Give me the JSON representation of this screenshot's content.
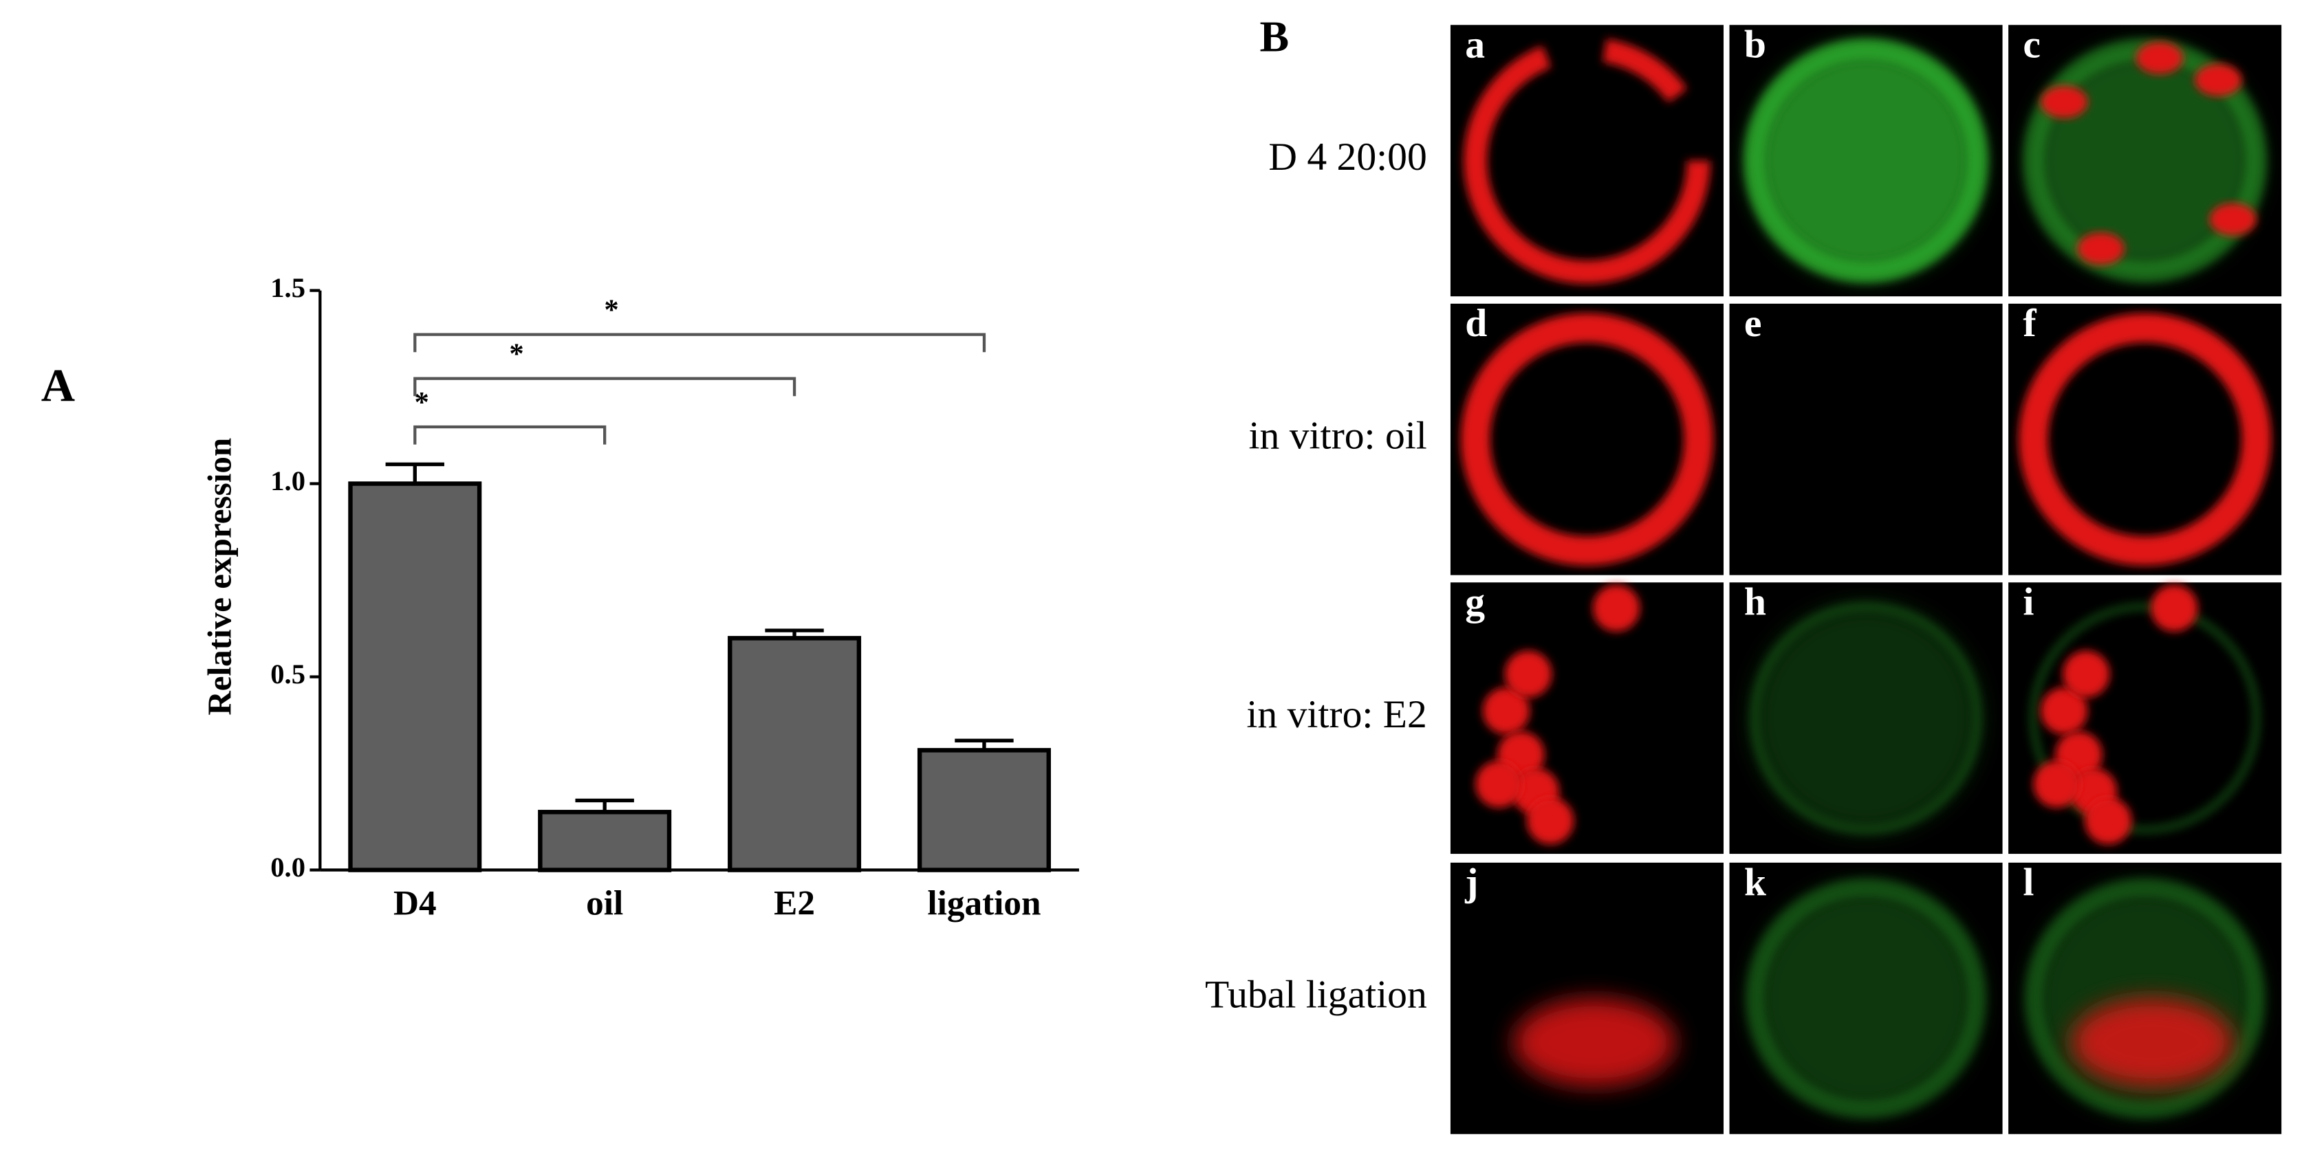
{
  "chart_data": {
    "type": "bar",
    "panel_label": "A",
    "ylabel": "Relative expression",
    "categories": [
      "D4",
      "oil",
      "E2",
      "ligation"
    ],
    "values": [
      1.0,
      0.15,
      0.6,
      0.31
    ],
    "errors": [
      0.05,
      0.03,
      0.02,
      0.025
    ],
    "color": "#5f5f5f",
    "ylim": [
      0,
      1.5
    ],
    "yticks": [
      {
        "value": 0,
        "label": "0.0"
      },
      {
        "value": 0.5,
        "label": "0.5"
      },
      {
        "value": 1,
        "label": "1.0"
      },
      {
        "value": 1.5,
        "label": "1.5"
      }
    ],
    "annotations": [
      {
        "text": "*",
        "between": [
          "D4",
          "oil"
        ]
      },
      {
        "text": "*",
        "between": [
          "D4",
          "E2"
        ]
      },
      {
        "text": "*",
        "between": [
          "D4",
          "ligation"
        ]
      }
    ]
  },
  "image_panel": {
    "label": "B",
    "rows": [
      {
        "label": "D 4 20:00",
        "cells": [
          "a",
          "b",
          "c"
        ]
      },
      {
        "label": "in vitro: oil",
        "cells": [
          "d",
          "e",
          "f"
        ]
      },
      {
        "label": "in vitro: E2",
        "cells": [
          "g",
          "h",
          "i"
        ]
      },
      {
        "label": "Tubal ligation",
        "cells": [
          "j",
          "k",
          "l"
        ]
      }
    ]
  }
}
